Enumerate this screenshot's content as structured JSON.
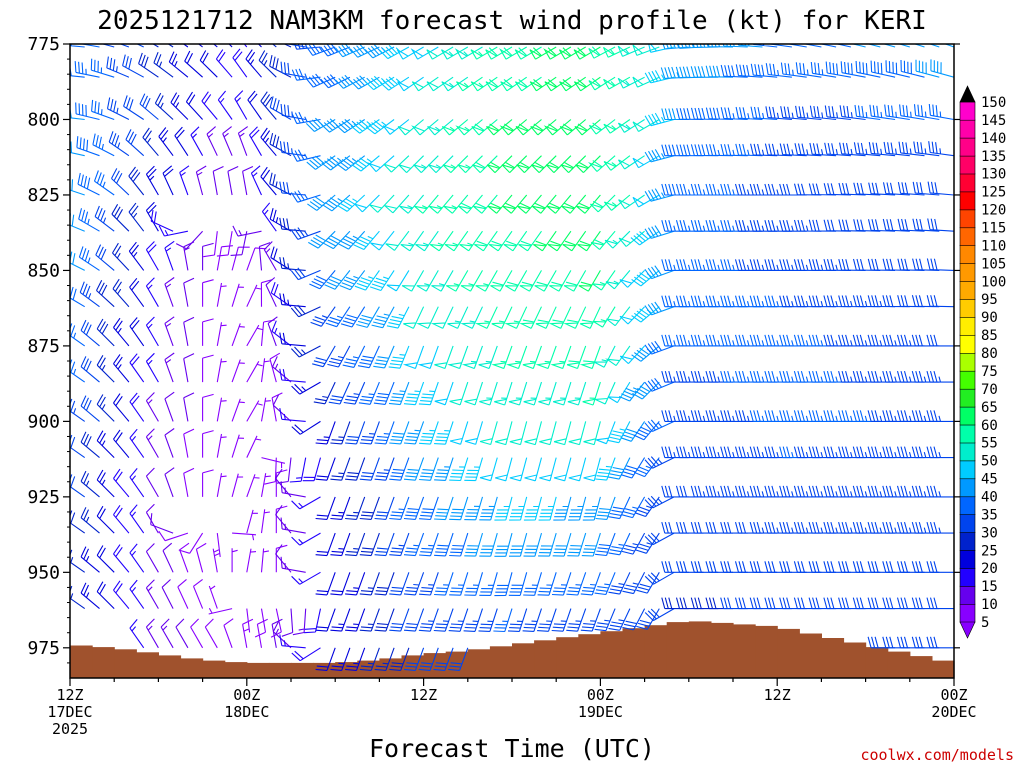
{
  "chart_data": {
    "type": "wind-barb-profile",
    "title": "2025121712 NAM3KM forecast wind profile (kt) for KERI",
    "xlabel": "Forecast Time (UTC)",
    "credit": "coolwx.com/models",
    "x_hours_range": [
      0,
      60
    ],
    "y_pressure_range": [
      775,
      985
    ],
    "y_ticks": [
      775,
      800,
      825,
      850,
      875,
      900,
      925,
      950,
      975
    ],
    "x_ticks": [
      {
        "hour": 0,
        "lines": [
          "12Z",
          "17DEC",
          "2025"
        ]
      },
      {
        "hour": 12,
        "lines": [
          "00Z",
          "18DEC"
        ]
      },
      {
        "hour": 24,
        "lines": [
          "12Z"
        ]
      },
      {
        "hour": 36,
        "lines": [
          "00Z",
          "19DEC"
        ]
      },
      {
        "hour": 48,
        "lines": [
          "12Z"
        ]
      },
      {
        "hour": 60,
        "lines": [
          "00Z",
          "20DEC"
        ]
      }
    ],
    "surface_pressure": {
      "hours": [
        0,
        3,
        6,
        9,
        12,
        15,
        18,
        21,
        24,
        27,
        30,
        33,
        36,
        39,
        42,
        45,
        48,
        51,
        54,
        57,
        60
      ],
      "values": [
        974,
        975,
        977,
        979,
        980,
        980,
        980,
        979,
        977,
        976,
        974,
        972,
        970,
        968,
        966,
        967,
        968,
        971,
        974,
        977,
        980
      ]
    },
    "wind_profile_keyframes": [
      {
        "hour": 0,
        "speeds": [
          40,
          44,
          46,
          45,
          40,
          38,
          34,
          30,
          28
        ],
        "dirs": [
          270,
          270,
          280,
          290,
          300,
          300,
          300,
          300,
          300
        ]
      },
      {
        "hour": 6,
        "speeds": [
          28,
          30,
          24,
          18,
          16,
          14,
          12,
          12,
          14
        ],
        "dirs": [
          300,
          310,
          330,
          330,
          330,
          330,
          330,
          330,
          330
        ]
      },
      {
        "hour": 10,
        "speeds": [
          22,
          18,
          10,
          8,
          6,
          6,
          6,
          6,
          8
        ],
        "dirs": [
          310,
          320,
          350,
          10,
          10,
          10,
          10,
          350,
          330
        ]
      },
      {
        "hour": 12,
        "speeds": [
          20,
          16,
          12,
          8,
          6,
          4,
          5,
          6,
          8
        ],
        "dirs": [
          320,
          330,
          350,
          20,
          30,
          30,
          20,
          10,
          350
        ]
      },
      {
        "hour": 14,
        "speeds": [
          26,
          28,
          20,
          14,
          10,
          8,
          8,
          8,
          10
        ],
        "dirs": [
          310,
          320,
          320,
          330,
          340,
          350,
          0,
          0,
          350
        ]
      },
      {
        "hour": 18,
        "speeds": [
          36,
          40,
          42,
          38,
          30,
          24,
          20,
          20,
          22
        ],
        "dirs": [
          250,
          240,
          230,
          220,
          210,
          200,
          200,
          200,
          200
        ]
      },
      {
        "hour": 24,
        "speeds": [
          48,
          50,
          54,
          52,
          48,
          44,
          38,
          34,
          30
        ],
        "dirs": [
          240,
          230,
          220,
          210,
          200,
          200,
          200,
          200,
          200
        ]
      },
      {
        "hour": 30,
        "speeds": [
          58,
          60,
          60,
          58,
          56,
          52,
          46,
          38,
          32
        ],
        "dirs": [
          240,
          230,
          220,
          210,
          200,
          195,
          195,
          195,
          200
        ]
      },
      {
        "hour": 36,
        "speeds": [
          62,
          62,
          62,
          60,
          58,
          52,
          44,
          36,
          32
        ],
        "dirs": [
          240,
          230,
          220,
          210,
          200,
          195,
          195,
          200,
          200
        ]
      },
      {
        "hour": 40,
        "speeds": [
          52,
          50,
          48,
          46,
          44,
          38,
          34,
          32,
          30
        ],
        "dirs": [
          250,
          240,
          240,
          230,
          230,
          220,
          215,
          210,
          210
        ]
      },
      {
        "hour": 42,
        "speeds": [
          45,
          40,
          38,
          36,
          35,
          33,
          32,
          30,
          28
        ],
        "dirs": [
          265,
          270,
          270,
          270,
          270,
          270,
          270,
          270,
          270
        ]
      },
      {
        "hour": 50,
        "speeds": [
          38,
          34,
          32,
          34,
          36,
          36,
          34,
          32,
          30
        ],
        "dirs": [
          280,
          275,
          270,
          270,
          270,
          270,
          270,
          270,
          270
        ]
      },
      {
        "hour": 60,
        "speeds": [
          44,
          36,
          30,
          30,
          32,
          34,
          34,
          32,
          30
        ],
        "dirs": [
          290,
          280,
          275,
          272,
          270,
          270,
          270,
          270,
          270
        ]
      }
    ],
    "keyframe_levels": [
      775,
      800,
      825,
      850,
      875,
      900,
      925,
      950,
      975
    ],
    "barb_levels": [
      776,
      786,
      800,
      812,
      825,
      837,
      850,
      862,
      875,
      887,
      900,
      912,
      925,
      937,
      950,
      962,
      975
    ],
    "colorbar": {
      "levels": [
        5,
        10,
        15,
        20,
        25,
        30,
        35,
        40,
        45,
        50,
        55,
        60,
        65,
        70,
        75,
        80,
        85,
        90,
        95,
        100,
        105,
        110,
        115,
        120,
        125,
        130,
        135,
        140,
        145,
        150
      ],
      "colors": [
        "#8800ff",
        "#6600ee",
        "#2200ff",
        "#0000dd",
        "#0022cc",
        "#0044ee",
        "#0066ff",
        "#0099ff",
        "#00ccff",
        "#00eecc",
        "#00ffaa",
        "#00ff66",
        "#22ee22",
        "#44ff00",
        "#aaff00",
        "#ffff00",
        "#ffee00",
        "#ffcc00",
        "#ffaa00",
        "#ff9900",
        "#ff8800",
        "#ff6600",
        "#ff4400",
        "#ff0000",
        "#ff0033",
        "#ff0066",
        "#ff0088",
        "#ff00aa",
        "#ff00cc",
        "#ff00ee"
      ],
      "min_color": "#8800ff",
      "max_color": "#000000"
    },
    "colors": {
      "terrain": "#a0522d",
      "credit": "#cc0000",
      "frame": "#000000"
    }
  }
}
